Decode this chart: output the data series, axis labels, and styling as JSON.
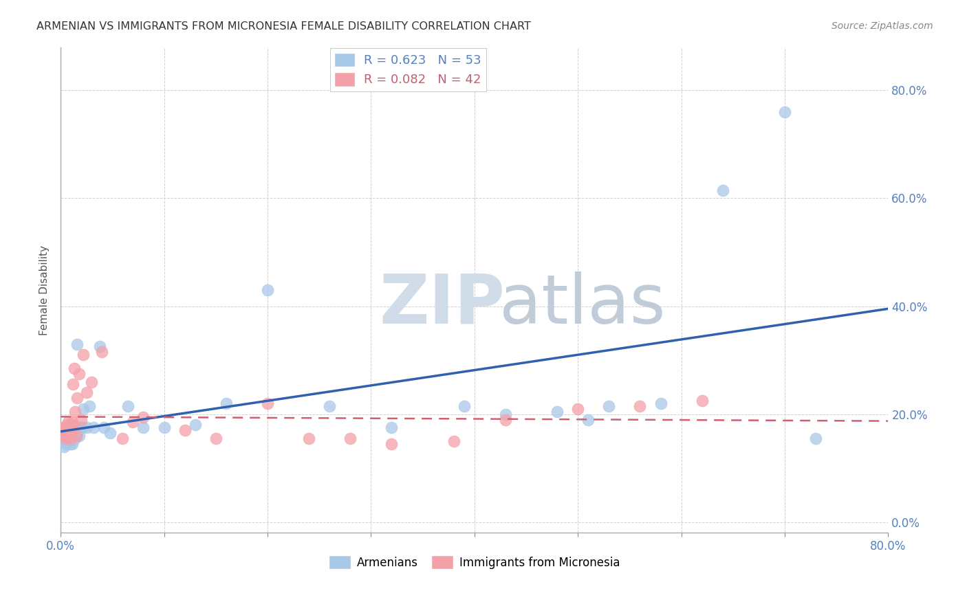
{
  "title": "ARMENIAN VS IMMIGRANTS FROM MICRONESIA FEMALE DISABILITY CORRELATION CHART",
  "source": "Source: ZipAtlas.com",
  "ylabel": "Female Disability",
  "xlim": [
    0.0,
    0.8
  ],
  "ylim": [
    -0.02,
    0.88
  ],
  "yticks": [
    0.0,
    0.2,
    0.4,
    0.6,
    0.8
  ],
  "xticks": [
    0.0,
    0.1,
    0.2,
    0.3,
    0.4,
    0.5,
    0.6,
    0.7,
    0.8
  ],
  "blue_R": 0.623,
  "blue_N": 53,
  "pink_R": 0.082,
  "pink_N": 42,
  "blue_color": "#a8c8e8",
  "pink_color": "#f4a0a8",
  "blue_line_color": "#3060b0",
  "pink_line_color": "#d06070",
  "legend_blue_label": "Armenians",
  "legend_pink_label": "Immigrants from Micronesia",
  "watermark_zip": "ZIP",
  "watermark_atlas": "atlas",
  "blue_points_x": [
    0.003,
    0.004,
    0.005,
    0.005,
    0.006,
    0.006,
    0.007,
    0.007,
    0.008,
    0.008,
    0.009,
    0.009,
    0.01,
    0.01,
    0.01,
    0.011,
    0.011,
    0.011,
    0.012,
    0.012,
    0.013,
    0.013,
    0.014,
    0.015,
    0.016,
    0.017,
    0.018,
    0.019,
    0.021,
    0.022,
    0.025,
    0.028,
    0.032,
    0.038,
    0.042,
    0.048,
    0.065,
    0.08,
    0.1,
    0.13,
    0.16,
    0.2,
    0.26,
    0.32,
    0.39,
    0.43,
    0.48,
    0.51,
    0.53,
    0.58,
    0.64,
    0.7,
    0.73
  ],
  "blue_points_y": [
    0.14,
    0.15,
    0.145,
    0.16,
    0.155,
    0.17,
    0.155,
    0.165,
    0.15,
    0.165,
    0.145,
    0.175,
    0.155,
    0.16,
    0.17,
    0.145,
    0.165,
    0.175,
    0.165,
    0.175,
    0.17,
    0.16,
    0.155,
    0.16,
    0.33,
    0.175,
    0.16,
    0.175,
    0.175,
    0.21,
    0.175,
    0.215,
    0.175,
    0.325,
    0.175,
    0.165,
    0.215,
    0.175,
    0.175,
    0.18,
    0.22,
    0.43,
    0.215,
    0.175,
    0.215,
    0.2,
    0.205,
    0.19,
    0.215,
    0.22,
    0.615,
    0.76,
    0.155
  ],
  "pink_points_x": [
    0.002,
    0.003,
    0.004,
    0.005,
    0.005,
    0.006,
    0.006,
    0.007,
    0.007,
    0.008,
    0.008,
    0.009,
    0.009,
    0.01,
    0.01,
    0.011,
    0.012,
    0.012,
    0.013,
    0.014,
    0.015,
    0.016,
    0.018,
    0.02,
    0.022,
    0.025,
    0.03,
    0.04,
    0.06,
    0.07,
    0.08,
    0.12,
    0.15,
    0.2,
    0.24,
    0.28,
    0.32,
    0.38,
    0.43,
    0.5,
    0.56,
    0.62
  ],
  "pink_points_y": [
    0.165,
    0.16,
    0.175,
    0.155,
    0.175,
    0.18,
    0.165,
    0.185,
    0.165,
    0.175,
    0.17,
    0.165,
    0.18,
    0.155,
    0.175,
    0.185,
    0.255,
    0.18,
    0.285,
    0.205,
    0.16,
    0.23,
    0.275,
    0.19,
    0.31,
    0.24,
    0.26,
    0.315,
    0.155,
    0.185,
    0.195,
    0.17,
    0.155,
    0.22,
    0.155,
    0.155,
    0.145,
    0.15,
    0.19,
    0.21,
    0.215,
    0.225
  ]
}
